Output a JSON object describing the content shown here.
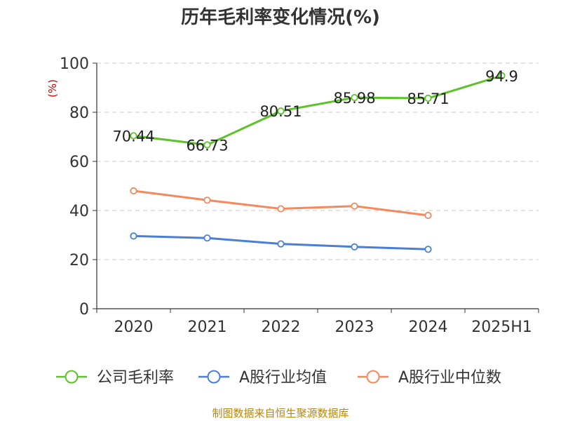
{
  "chart_data": {
    "type": "line",
    "title": "历年毛利率变化情况(%)",
    "ylabel": "(%)",
    "xlabel": "",
    "categories": [
      "2020",
      "2021",
      "2022",
      "2023",
      "2024",
      "2025H1"
    ],
    "ylim": [
      0,
      100
    ],
    "yticks": [
      0,
      20,
      40,
      60,
      80,
      100
    ],
    "grid": true,
    "legend_position": "bottom",
    "series": [
      {
        "name": "公司毛利率",
        "color": "#5cc32a",
        "values": [
          70.44,
          66.73,
          80.51,
          85.98,
          85.71,
          94.9
        ],
        "labels": [
          "70.44",
          "66.73",
          "80.51",
          "85.98",
          "85.71",
          "94.9"
        ]
      },
      {
        "name": "A股行业均值",
        "color": "#4a7fd9",
        "values": [
          29.6,
          28.8,
          26.4,
          25.2,
          24.2,
          null
        ],
        "labels": []
      },
      {
        "name": "A股行业中位数",
        "color": "#f5895e",
        "values": [
          48.0,
          44.2,
          40.7,
          41.8,
          38.0,
          null
        ],
        "labels": []
      }
    ]
  },
  "footer": {
    "source": "制图数据来自恒生聚源数据库"
  }
}
